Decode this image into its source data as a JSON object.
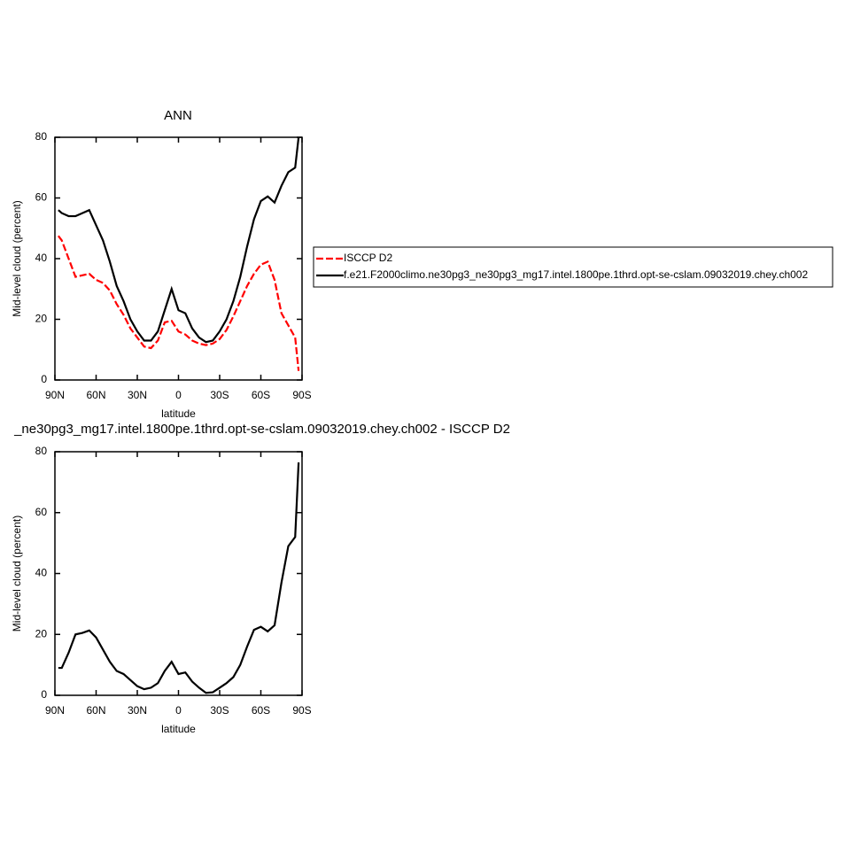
{
  "chart_data": [
    {
      "type": "line",
      "title": "ANN",
      "xlabel": "latitude",
      "ylabel": "Mid-level cloud (percent)",
      "x": [
        87.5,
        85,
        80,
        75,
        70,
        65,
        60,
        55,
        50,
        45,
        40,
        35,
        30,
        25,
        20,
        15,
        10,
        5,
        0,
        -5,
        -10,
        -15,
        -20,
        -25,
        -30,
        -35,
        -40,
        -45,
        -50,
        -55,
        -60,
        -65,
        -70,
        -75,
        -80,
        -85,
        -87.5
      ],
      "series": [
        {
          "name": "ISCCP D2",
          "color": "#ff0000",
          "linestyle": "dashed",
          "values": [
            47.5,
            46,
            40,
            34,
            34.5,
            35,
            33,
            32,
            29.5,
            25,
            21.5,
            17,
            14,
            11,
            10.5,
            13,
            19,
            19.5,
            16,
            15,
            13,
            12,
            11.5,
            12,
            13.5,
            16.5,
            21,
            26,
            31,
            35,
            38,
            39,
            33,
            22,
            18,
            14,
            3
          ]
        },
        {
          "name": "f.e21.F2000climo.ne30pg3_ne30pg3_mg17.intel.1800pe.1thrd.opt-se-cslam.09032019.chey.ch002",
          "color": "#000000",
          "linestyle": "solid",
          "values": [
            56,
            55,
            54,
            54,
            55,
            56,
            51,
            46,
            39,
            31,
            26,
            20,
            16,
            13,
            13,
            16,
            23,
            30,
            23,
            22,
            17,
            14,
            12.5,
            13,
            16,
            20,
            26,
            34,
            44,
            53,
            59,
            60.5,
            58.5,
            64,
            68.5,
            70,
            80
          ]
        }
      ],
      "xlim": [
        90,
        -90
      ],
      "xticks": [
        {
          "value": 90,
          "label": "90N"
        },
        {
          "value": 60,
          "label": "60N"
        },
        {
          "value": 30,
          "label": "30N"
        },
        0,
        {
          "value": -30,
          "label": "30S"
        },
        {
          "value": -60,
          "label": "60S"
        },
        {
          "value": -90,
          "label": "90S"
        }
      ],
      "ylim": [
        0,
        80
      ],
      "yticks": [
        0,
        20,
        40,
        60,
        80
      ],
      "legend": "right"
    },
    {
      "type": "line",
      "title": "_ne30pg3_mg17.intel.1800pe.1thrd.opt-se-cslam.09032019.chey.ch002 - ISCCP D2",
      "xlabel": "latitude",
      "ylabel": "Mid-level cloud (percent)",
      "x": [
        87.5,
        85,
        80,
        75,
        70,
        65,
        60,
        55,
        50,
        45,
        40,
        35,
        30,
        25,
        20,
        15,
        10,
        5,
        0,
        -5,
        -10,
        -15,
        -20,
        -25,
        -30,
        -35,
        -40,
        -45,
        -50,
        -55,
        -60,
        -65,
        -70,
        -75,
        -80,
        -85,
        -87.5
      ],
      "series": [
        {
          "color": "#000000",
          "linestyle": "solid",
          "values": [
            9,
            9,
            14,
            20,
            20.5,
            21.3,
            19,
            15,
            11,
            8,
            7,
            5,
            3,
            2,
            2.5,
            4,
            8,
            11,
            7,
            7.5,
            4.5,
            2.5,
            0.8,
            1,
            2.5,
            4,
            6,
            10,
            16,
            21.5,
            22.5,
            21,
            23,
            37,
            49,
            52,
            76.5
          ]
        }
      ],
      "xlim": [
        90,
        -90
      ],
      "xticks": [
        {
          "value": 90,
          "label": "90N"
        },
        {
          "value": 60,
          "label": "60N"
        },
        {
          "value": 30,
          "label": "30N"
        },
        0,
        {
          "value": -30,
          "label": "30S"
        },
        {
          "value": -60,
          "label": "60S"
        },
        {
          "value": -90,
          "label": "90S"
        }
      ],
      "ylim": [
        0,
        80
      ],
      "yticks": [
        0,
        20,
        40,
        60,
        80
      ]
    }
  ]
}
